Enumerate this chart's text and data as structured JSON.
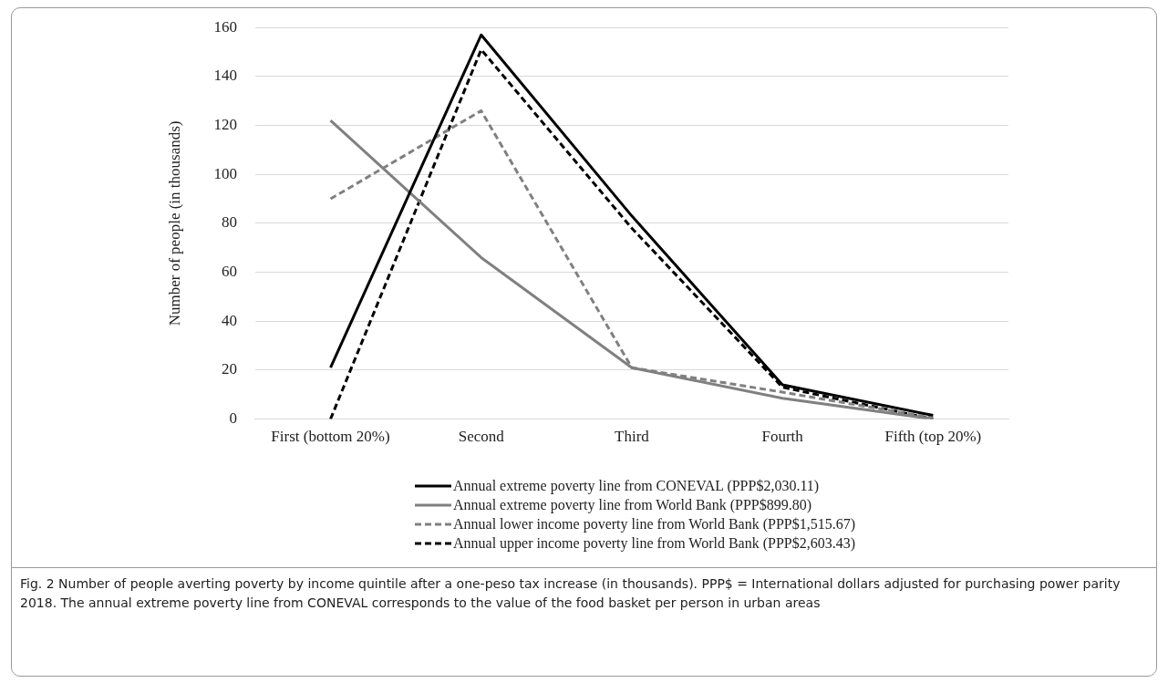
{
  "chart_data": {
    "type": "line",
    "ylabel": "Number of people (in thousands)",
    "categories": [
      "First (bottom 20%)",
      "Second",
      "Third",
      "Fourth",
      "Fifth (top 20%)"
    ],
    "series": [
      {
        "name": "Annual extreme poverty line from CONEVAL (PPP$2,030.11)",
        "color": "#000000",
        "line_style": "solid",
        "values": [
          21,
          157,
          83,
          14,
          1.5
        ]
      },
      {
        "name": "Annual extreme poverty line from World Bank (PPP$899.80)",
        "color": "#808080",
        "line_style": "solid",
        "values": [
          122,
          66,
          21,
          8.5,
          0
        ]
      },
      {
        "name": "Annual lower income poverty line from World Bank (PPP$1,515.67)",
        "color": "#808080",
        "line_style": "dashed",
        "values": [
          90,
          126,
          21,
          11,
          0.5
        ]
      },
      {
        "name": "Annual upper income poverty line from World Bank (PPP$2,603.43)",
        "color": "#000000",
        "line_style": "dashed",
        "values": [
          0,
          151,
          78,
          13,
          0
        ]
      }
    ],
    "ylim": [
      0,
      160
    ],
    "yticks": [
      0,
      20,
      40,
      60,
      80,
      100,
      120,
      140,
      160
    ],
    "grid": "y",
    "legend": "bottom",
    "marker": "none",
    "annotations": [
      "Fig. 2 Number of people averting poverty by income quintile after a one-peso tax increase (in thousands). PPP$ = International dollars adjusted for purchasing power parity 2018. The annual extreme poverty line from CONEVAL corresponds to the value of the food basket per person in urban areas"
    ]
  }
}
